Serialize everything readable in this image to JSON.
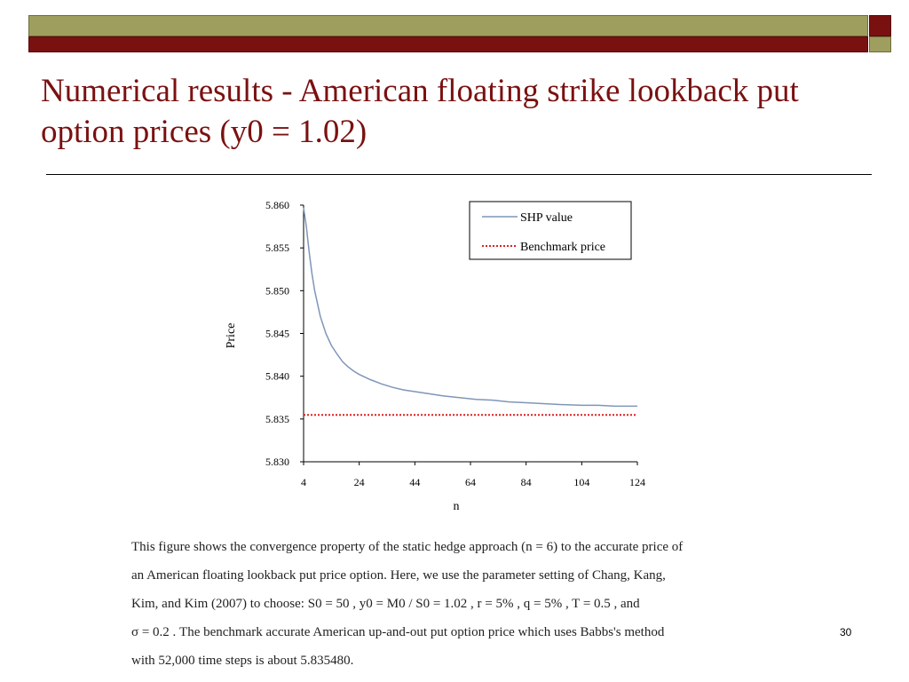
{
  "slide": {
    "title": "Numerical results - American floating strike lookback put option prices (y0 = 1.02)",
    "page_number": "30",
    "colors": {
      "title": "#7a1111",
      "maroon_bar": "#7a1111",
      "olive_bar": "#9e9e5e"
    }
  },
  "caption": {
    "line1": "This figure shows the convergence property of the static hedge approach (n = 6) to the accurate price of",
    "line2": "an American floating lookback put price option. Here, we use the parameter setting of Chang, Kang,",
    "line3": "Kim, and Kim (2007) to choose: S0 = 50 , y0 = M0 / S0 = 1.02 , r = 5% , q = 5% , T = 0.5 , and",
    "line4": "σ = 0.2 . The benchmark accurate American up-and-out put option price which uses Babbs's method",
    "line5": "with 52,000 time steps is about 5.835480."
  },
  "chart_data": {
    "type": "line",
    "xlabel": "n",
    "ylabel": "Price",
    "xlim": [
      4,
      124
    ],
    "ylim": [
      5.83,
      5.86
    ],
    "xticks": [
      "4",
      "24",
      "44",
      "64",
      "84",
      "104",
      "124"
    ],
    "yticks": [
      "5.830",
      "5.835",
      "5.840",
      "5.845",
      "5.850",
      "5.855",
      "5.860"
    ],
    "legend_position": "top-right",
    "series": [
      {
        "name": "SHP value",
        "style": "solid",
        "color": "#7f96b8",
        "x": [
          4,
          5,
          6,
          7,
          8,
          10,
          12,
          14,
          16,
          18,
          20,
          22,
          24,
          28,
          32,
          36,
          40,
          44,
          48,
          54,
          60,
          66,
          72,
          78,
          84,
          90,
          96,
          104,
          110,
          116,
          124
        ],
        "y": [
          5.8597,
          5.8575,
          5.8545,
          5.852,
          5.85,
          5.847,
          5.845,
          5.8436,
          5.8426,
          5.8417,
          5.8411,
          5.8406,
          5.8402,
          5.8396,
          5.8391,
          5.8387,
          5.8384,
          5.8382,
          5.838,
          5.8377,
          5.8375,
          5.8373,
          5.8372,
          5.837,
          5.8369,
          5.8368,
          5.8367,
          5.8366,
          5.8366,
          5.8365,
          5.8365
        ]
      },
      {
        "name": "Benchmark price",
        "style": "dotted",
        "color": "#e02020",
        "x": [
          4,
          124
        ],
        "y": [
          5.83548,
          5.83548
        ]
      }
    ]
  }
}
